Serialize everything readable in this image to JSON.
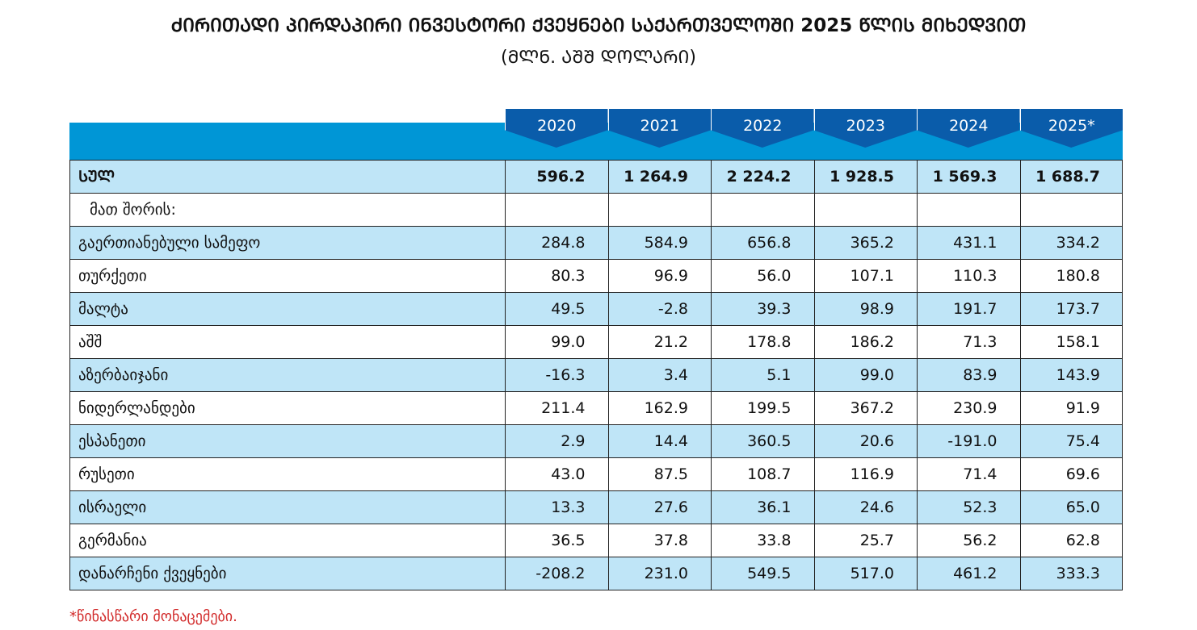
{
  "title": "ᲫᲘᲠᲘᲗᲐᲓᲘ ᲞᲘᲠᲓᲐᲞᲘᲠᲘ ᲘᲜᲕᲔᲡᲢᲝᲠᲘ ᲥᲕᲔᲧᲜᲔᲑᲘ ᲡᲐᲥᲐᲠᲗᲕᲔᲚᲝᲨᲘ 2025 ᲬᲚᲘᲡ ᲛᲘᲮᲔᲓᲕᲘᲗ",
  "subtitle": "(ᲛᲚᲜ. ᲐᲨᲨ ᲓᲝᲚᲐᲠᲘ)",
  "table": {
    "columns": [
      "2020",
      "2021",
      "2022",
      "2023",
      "2024",
      "2025*"
    ],
    "rows": [
      {
        "label": "ᲡᲣᲚ",
        "values": [
          "596.2",
          "1 264.9",
          "2 224.2",
          "1 928.5",
          "1 569.3",
          "1 688.7"
        ]
      },
      {
        "label": "მათ შორის:",
        "values": []
      },
      {
        "label": "გაერთიანებული სამეფო",
        "values": [
          "284.8",
          "584.9",
          "656.8",
          "365.2",
          "431.1",
          "334.2"
        ]
      },
      {
        "label": "თურქეთი",
        "values": [
          "80.3",
          "96.9",
          "56.0",
          "107.1",
          "110.3",
          "180.8"
        ]
      },
      {
        "label": "მალტა",
        "values": [
          "49.5",
          "-2.8",
          "39.3",
          "98.9",
          "191.7",
          "173.7"
        ]
      },
      {
        "label": "აშშ",
        "values": [
          "99.0",
          "21.2",
          "178.8",
          "186.2",
          "71.3",
          "158.1"
        ]
      },
      {
        "label": "აზერბაიჯანი",
        "values": [
          "-16.3",
          "3.4",
          "5.1",
          "99.0",
          "83.9",
          "143.9"
        ]
      },
      {
        "label": "ნიდერლანდები",
        "values": [
          "211.4",
          "162.9",
          "199.5",
          "367.2",
          "230.9",
          "91.9"
        ]
      },
      {
        "label": "ესპანეთი",
        "values": [
          "2.9",
          "14.4",
          "360.5",
          "20.6",
          "-191.0",
          "75.4"
        ]
      },
      {
        "label": "რუსეთი",
        "values": [
          "43.0",
          "87.5",
          "108.7",
          "116.9",
          "71.4",
          "69.6"
        ]
      },
      {
        "label": "ისრაელი",
        "values": [
          "13.3",
          "27.6",
          "36.1",
          "24.6",
          "52.3",
          "65.0"
        ]
      },
      {
        "label": "გერმანია",
        "values": [
          "36.5",
          "37.8",
          "33.8",
          "25.7",
          "56.2",
          "62.8"
        ]
      },
      {
        "label": "დანარჩენი ქვეყნები",
        "values": [
          "-208.2",
          "231.0",
          "549.5",
          "517.0",
          "461.2",
          "333.3"
        ]
      }
    ]
  },
  "footnote": "*წინასწარი მონაცემები."
}
